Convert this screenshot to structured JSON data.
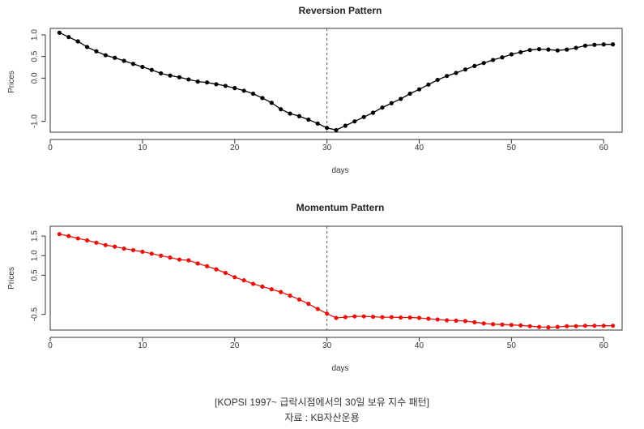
{
  "caption": {
    "line1": "[KOPSI 1997~ 급락시점에서의 30일 보유 지수 패턴]",
    "line2": "자료 : KB자산운용"
  },
  "chart_data": [
    {
      "type": "line",
      "title": "Reversion Pattern",
      "xlabel": "days",
      "ylabel": "Prices",
      "xlim": [
        0,
        62
      ],
      "ylim": [
        -1.25,
        1.15
      ],
      "xticks": [
        0,
        10,
        20,
        30,
        40,
        50,
        60
      ],
      "yticks": [
        1.0,
        0.5,
        0.0,
        -1.0
      ],
      "ytick_labels": [
        "1.0",
        "0.5",
        "0.0",
        "-1.0"
      ],
      "vline_x": 30,
      "color": "#000000",
      "x": [
        1,
        2,
        3,
        4,
        5,
        6,
        7,
        8,
        9,
        10,
        11,
        12,
        13,
        14,
        15,
        16,
        17,
        18,
        19,
        20,
        21,
        22,
        23,
        24,
        25,
        26,
        27,
        28,
        29,
        30,
        31,
        32,
        33,
        34,
        35,
        36,
        37,
        38,
        39,
        40,
        41,
        42,
        43,
        44,
        45,
        46,
        47,
        48,
        49,
        50,
        51,
        52,
        53,
        54,
        55,
        56,
        57,
        58,
        59,
        60,
        61
      ],
      "y": [
        1.05,
        0.95,
        0.85,
        0.72,
        0.62,
        0.53,
        0.47,
        0.4,
        0.33,
        0.26,
        0.19,
        0.11,
        0.06,
        0.02,
        -0.03,
        -0.08,
        -0.1,
        -0.14,
        -0.18,
        -0.23,
        -0.29,
        -0.36,
        -0.46,
        -0.57,
        -0.72,
        -0.82,
        -0.88,
        -0.96,
        -1.05,
        -1.15,
        -1.2,
        -1.1,
        -1.0,
        -0.9,
        -0.8,
        -0.68,
        -0.58,
        -0.48,
        -0.36,
        -0.26,
        -0.15,
        -0.04,
        0.05,
        0.12,
        0.2,
        0.28,
        0.35,
        0.42,
        0.48,
        0.55,
        0.6,
        0.65,
        0.67,
        0.66,
        0.64,
        0.66,
        0.7,
        0.75,
        0.77,
        0.78,
        0.78
      ]
    },
    {
      "type": "line",
      "title": "Momentum Pattern",
      "xlabel": "days",
      "ylabel": "Prices",
      "xlim": [
        0,
        62
      ],
      "ylim": [
        -0.9,
        1.75
      ],
      "xticks": [
        0,
        10,
        20,
        30,
        40,
        50,
        60
      ],
      "yticks": [
        1.5,
        1.0,
        0.5,
        -0.5
      ],
      "ytick_labels": [
        "1.5",
        "1.0",
        "0.5",
        "-0.5"
      ],
      "vline_x": 30,
      "color": "#e8120c",
      "x": [
        1,
        2,
        3,
        4,
        5,
        6,
        7,
        8,
        9,
        10,
        11,
        12,
        13,
        14,
        15,
        16,
        17,
        18,
        19,
        20,
        21,
        22,
        23,
        24,
        25,
        26,
        27,
        28,
        29,
        30,
        31,
        32,
        33,
        34,
        35,
        36,
        37,
        38,
        39,
        40,
        41,
        42,
        43,
        44,
        45,
        46,
        47,
        48,
        49,
        50,
        51,
        52,
        53,
        54,
        55,
        56,
        57,
        58,
        59,
        60,
        61
      ],
      "y": [
        1.55,
        1.5,
        1.44,
        1.39,
        1.33,
        1.27,
        1.23,
        1.18,
        1.14,
        1.1,
        1.05,
        1.0,
        0.95,
        0.9,
        0.88,
        0.8,
        0.73,
        0.65,
        0.56,
        0.45,
        0.37,
        0.28,
        0.21,
        0.14,
        0.07,
        -0.02,
        -0.12,
        -0.23,
        -0.36,
        -0.48,
        -0.59,
        -0.57,
        -0.55,
        -0.55,
        -0.56,
        -0.57,
        -0.57,
        -0.58,
        -0.58,
        -0.59,
        -0.61,
        -0.63,
        -0.65,
        -0.66,
        -0.67,
        -0.7,
        -0.73,
        -0.75,
        -0.76,
        -0.77,
        -0.78,
        -0.8,
        -0.82,
        -0.83,
        -0.82,
        -0.8,
        -0.8,
        -0.79,
        -0.79,
        -0.79,
        -0.79
      ]
    }
  ]
}
